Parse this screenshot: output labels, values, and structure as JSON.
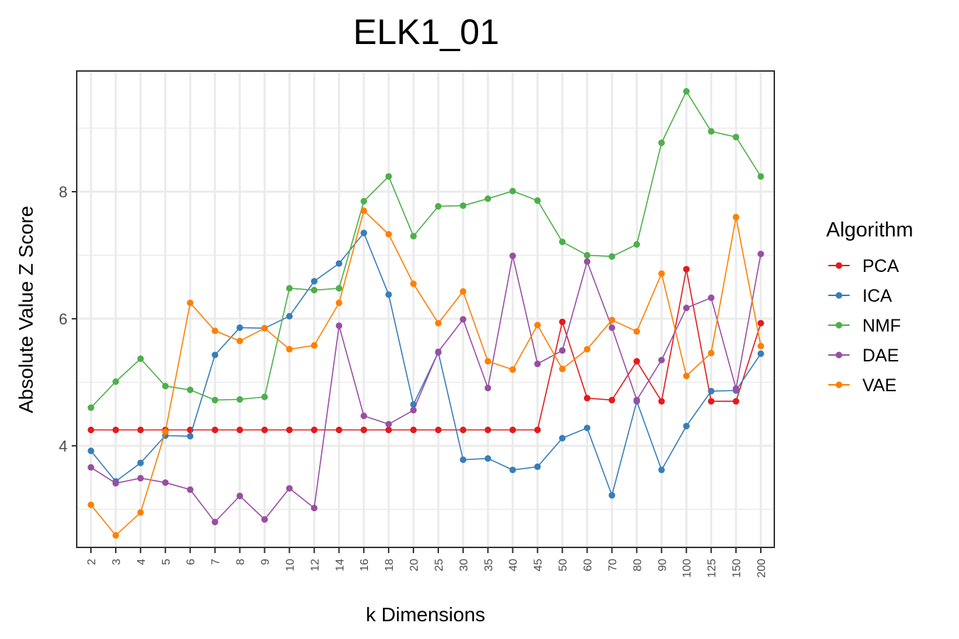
{
  "chart_data": {
    "type": "line",
    "title": "ELK1_01",
    "xlabel": "k Dimensions",
    "ylabel": "Absolute Value Z Score",
    "categories": [
      "2",
      "3",
      "4",
      "5",
      "6",
      "7",
      "8",
      "9",
      "10",
      "12",
      "14",
      "16",
      "18",
      "20",
      "25",
      "30",
      "35",
      "40",
      "45",
      "50",
      "60",
      "70",
      "80",
      "90",
      "100",
      "125",
      "150",
      "200"
    ],
    "yticks": [
      "4",
      "6",
      "8"
    ],
    "ylim": [
      2.4,
      9.9
    ],
    "grid": true,
    "legend": {
      "title": "Algorithm",
      "position": "right"
    },
    "series": [
      {
        "name": "PCA",
        "color": "#e41a1c",
        "values": [
          4.25,
          4.25,
          4.25,
          4.25,
          4.25,
          4.25,
          4.25,
          4.25,
          4.25,
          4.25,
          4.25,
          4.25,
          4.25,
          4.25,
          4.25,
          4.25,
          4.25,
          4.25,
          4.25,
          5.95,
          4.75,
          4.72,
          5.33,
          4.7,
          6.78,
          4.7,
          4.7,
          5.93
        ]
      },
      {
        "name": "ICA",
        "color": "#377eb8",
        "values": [
          3.92,
          3.44,
          3.73,
          4.16,
          4.15,
          5.43,
          5.86,
          5.85,
          6.04,
          6.59,
          6.87,
          7.35,
          6.38,
          4.65,
          5.47,
          3.78,
          3.8,
          3.62,
          3.67,
          4.12,
          4.28,
          3.22,
          4.7,
          3.62,
          4.31,
          4.86,
          4.87,
          5.45
        ]
      },
      {
        "name": "NMF",
        "color": "#4daf4a",
        "values": [
          4.6,
          5.01,
          5.37,
          4.94,
          4.88,
          4.72,
          4.73,
          4.77,
          6.48,
          6.45,
          6.48,
          7.85,
          8.24,
          7.3,
          7.77,
          7.78,
          7.89,
          8.01,
          7.86,
          7.21,
          7.0,
          6.98,
          7.17,
          8.77,
          9.58,
          8.95,
          8.86,
          8.24
        ]
      },
      {
        "name": "DAE",
        "color": "#984ea3",
        "values": [
          3.66,
          3.41,
          3.49,
          3.42,
          3.31,
          2.8,
          3.21,
          2.84,
          3.33,
          3.02,
          5.89,
          4.47,
          4.34,
          4.56,
          5.48,
          5.99,
          4.91,
          6.99,
          5.29,
          5.5,
          6.9,
          5.86,
          4.72,
          5.35,
          6.17,
          6.33,
          4.9,
          7.02
        ]
      },
      {
        "name": "VAE",
        "color": "#ff7f00",
        "values": [
          3.07,
          2.59,
          2.95,
          4.22,
          6.25,
          5.81,
          5.65,
          5.85,
          5.52,
          5.58,
          6.25,
          7.7,
          7.33,
          6.55,
          5.93,
          6.43,
          5.33,
          5.2,
          5.9,
          5.21,
          5.52,
          5.98,
          5.8,
          6.71,
          5.1,
          5.46,
          7.6,
          5.57
        ]
      }
    ]
  }
}
